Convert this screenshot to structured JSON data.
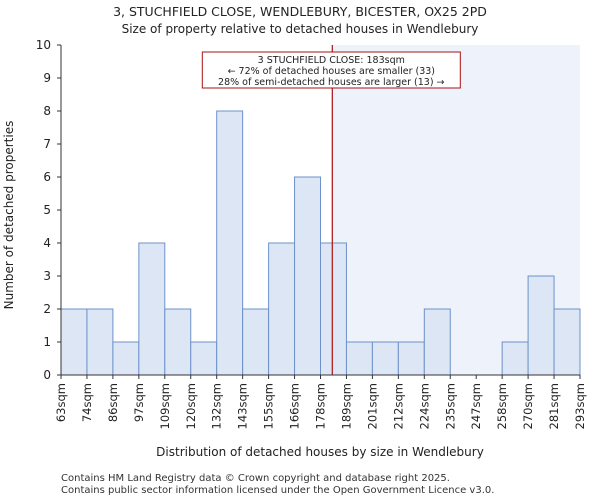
{
  "chart_data": {
    "type": "histogram",
    "title": "3, STUCHFIELD CLOSE, WENDLEBURY, BICESTER, OX25 2PD",
    "subtitle": "Size of property relative to detached houses in Wendlebury",
    "xlabel": "Distribution of detached houses by size in Wendlebury",
    "ylabel": "Number of detached properties",
    "categories": [
      "63sqm",
      "74sqm",
      "86sqm",
      "97sqm",
      "109sqm",
      "120sqm",
      "132sqm",
      "143sqm",
      "155sqm",
      "166sqm",
      "178sqm",
      "189sqm",
      "201sqm",
      "212sqm",
      "224sqm",
      "235sqm",
      "247sqm",
      "258sqm",
      "270sqm",
      "281sqm",
      "293sqm"
    ],
    "values": [
      2,
      2,
      1,
      4,
      2,
      1,
      8,
      2,
      4,
      6,
      4,
      1,
      1,
      1,
      2,
      0,
      0,
      1,
      3,
      2
    ],
    "ylim": [
      0,
      10
    ],
    "yticks": [
      0,
      1,
      2,
      3,
      4,
      5,
      6,
      7,
      8,
      9,
      10
    ],
    "marker": {
      "value_sqm": 183,
      "annotation_lines": [
        "3 STUCHFIELD CLOSE: 183sqm",
        "← 72% of detached houses are smaller (33)",
        "28% of semi-detached houses are larger (13) →"
      ]
    },
    "colors": {
      "bar_fill": "#dce6f5",
      "bar_stroke": "#6d91c9",
      "highlight_region": "#eef2fb",
      "marker_line": "#aa1111",
      "axis": "#333333"
    },
    "grid": false,
    "legend": "none"
  },
  "footer": {
    "line1": "Contains HM Land Registry data © Crown copyright and database right 2025.",
    "line2": "Contains public sector information licensed under the Open Government Licence v3.0."
  }
}
